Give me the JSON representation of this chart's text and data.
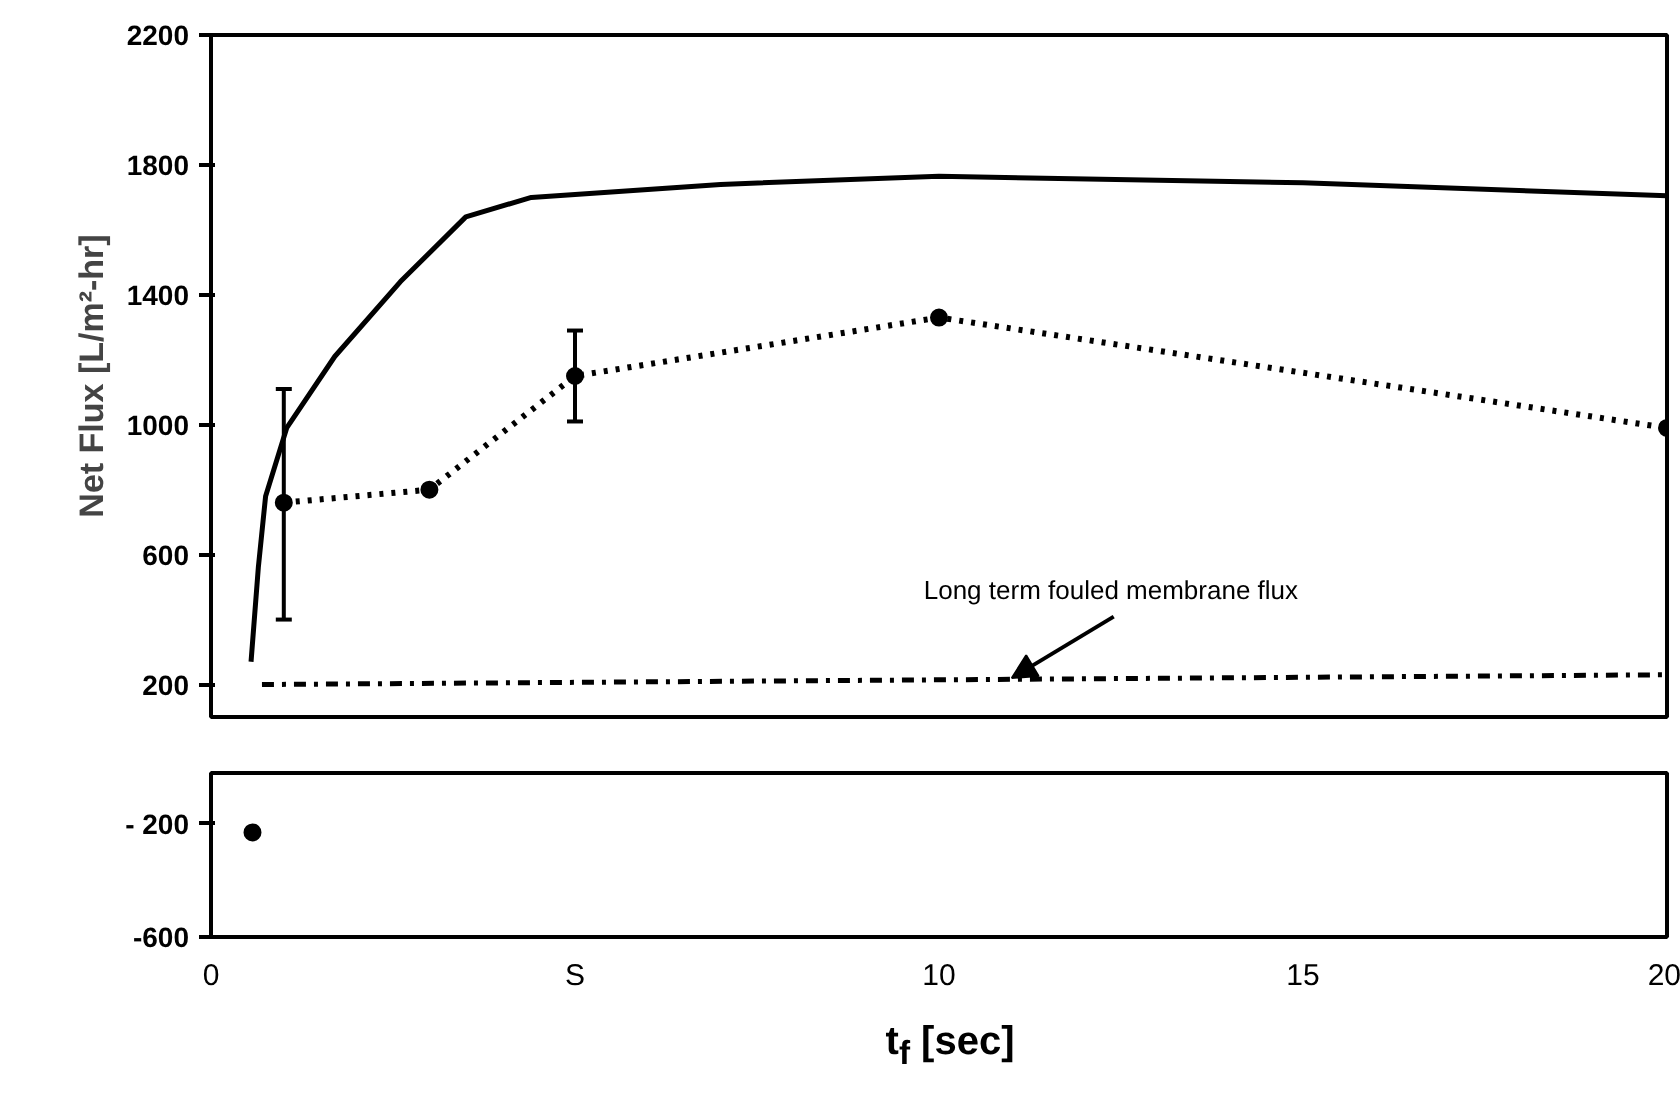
{
  "chart_data": [
    {
      "type": "line",
      "ylabel": "Net Flux [L/m²-hr]",
      "xlim": [
        0,
        20
      ],
      "ylim": [
        100,
        2200
      ],
      "yticks": [
        200,
        600,
        1000,
        1400,
        1800,
        2200
      ],
      "grid": false,
      "series": [
        {
          "color": "#000000",
          "line_style": "solid",
          "x": [
            0.55,
            0.65,
            0.75,
            1.04,
            1.7,
            2.6,
            3.5,
            4.4,
            7,
            10,
            15,
            20
          ],
          "values": [
            270,
            560,
            780,
            990,
            1210,
            1440,
            1640,
            1700,
            1740,
            1765,
            1745,
            1705
          ]
        },
        {
          "color": "#000000",
          "line_style": "dotted",
          "marker": "circle",
          "x": [
            1,
            3,
            5,
            10,
            20
          ],
          "values": [
            760,
            800,
            1150,
            1330,
            990
          ],
          "errors": [
            [
              400,
              1110
            ],
            null,
            [
              1010,
              1290
            ],
            null,
            null
          ]
        },
        {
          "color": "#000000",
          "line_style": "dashdot",
          "x": [
            0.7,
            20
          ],
          "values": [
            200,
            230
          ]
        }
      ],
      "annotations": [
        {
          "text": "Long term fouled membrane flux",
          "x": 11,
          "y": 220
        }
      ]
    },
    {
      "type": "scatter",
      "xlabel": "t$_{f}$ [sec]",
      "xlim": [
        0,
        20
      ],
      "ylim": [
        -600,
        -20
      ],
      "xticks": [
        0,
        {
          "value": 5,
          "label": "S"
        },
        10,
        15,
        20
      ],
      "yticks": [
        {
          "value": -200,
          "label": "- 200"
        },
        -600
      ],
      "grid": false,
      "series": [
        {
          "color": "#000000",
          "marker": "circle",
          "x": [
            0.57
          ],
          "values": [
            -230
          ]
        }
      ]
    }
  ]
}
